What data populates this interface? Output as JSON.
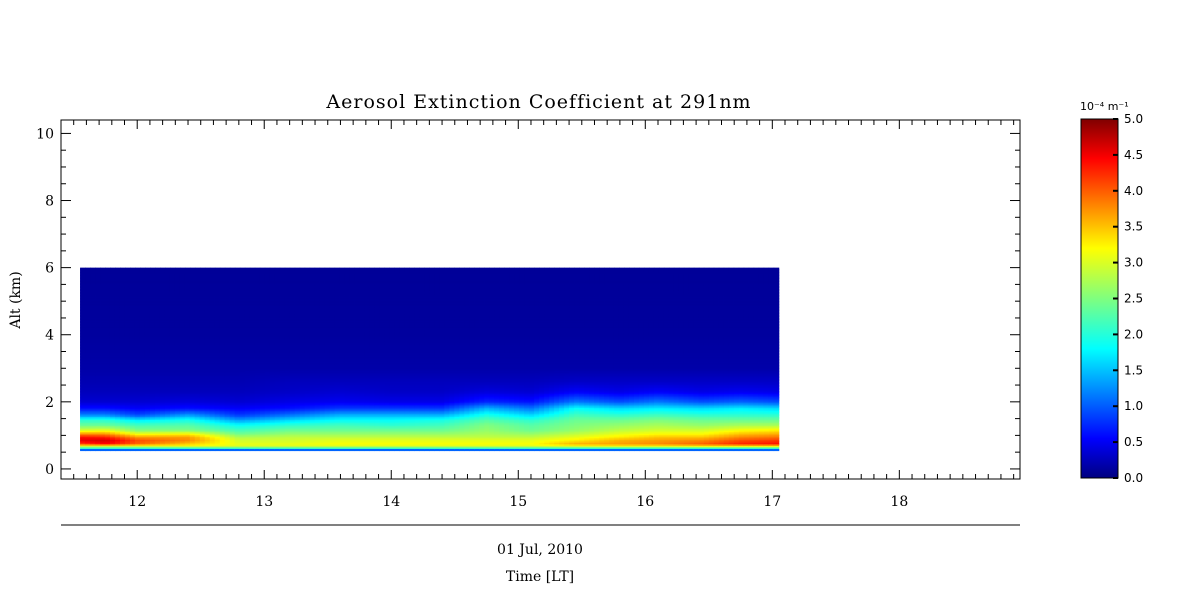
{
  "chart_data": {
    "type": "heatmap",
    "title": "Aerosol Extinction Coefficient at 291nm",
    "ylabel": "Alt (km)",
    "date_label": "01 Jul, 2010",
    "xlabel": "Time [LT]",
    "xlim": [
      11.4,
      18.95
    ],
    "ylim": [
      -0.3,
      10.4
    ],
    "x_ticks": [
      "12",
      "13",
      "14",
      "15",
      "16",
      "17",
      "18"
    ],
    "y_ticks": [
      "0",
      "2",
      "4",
      "6",
      "8",
      "10"
    ],
    "data_extent": {
      "time_start": 11.55,
      "time_end": 17.05,
      "alt_min": 0.55,
      "alt_max": 6.0
    },
    "colorbar": {
      "unit": "10⁻⁴ m⁻¹",
      "min": 0.0,
      "max": 5.0,
      "ticks": [
        "0.0",
        "0.5",
        "1.0",
        "1.5",
        "2.0",
        "2.5",
        "3.0",
        "3.5",
        "4.0",
        "4.5",
        "5.0"
      ],
      "colormap": "jet"
    },
    "profile_altitudes": [
      0.55,
      0.62,
      0.68,
      0.75,
      0.85,
      0.95,
      1.05,
      1.15,
      1.3,
      1.45,
      1.6,
      1.8,
      2.0,
      2.3,
      2.6,
      3.0,
      4.0,
      6.0
    ],
    "profiles": [
      {
        "time": 11.55,
        "values": [
          0.6,
          2.2,
          3.0,
          4.1,
          4.5,
          4.3,
          3.6,
          2.9,
          2.4,
          2.1,
          1.3,
          0.7,
          0.4,
          0.3,
          0.25,
          0.2,
          0.15,
          0.12
        ]
      },
      {
        "time": 11.75,
        "values": [
          0.6,
          2.2,
          3.0,
          4.4,
          4.6,
          4.2,
          3.6,
          3.0,
          2.4,
          2.1,
          1.3,
          0.7,
          0.4,
          0.3,
          0.25,
          0.2,
          0.15,
          0.12
        ]
      },
      {
        "time": 12.0,
        "values": [
          0.6,
          2.2,
          3.0,
          3.9,
          4.0,
          3.6,
          3.0,
          2.5,
          2.2,
          1.8,
          1.0,
          0.6,
          0.4,
          0.3,
          0.25,
          0.2,
          0.15,
          0.12
        ]
      },
      {
        "time": 12.4,
        "values": [
          0.6,
          2.2,
          3.1,
          3.4,
          3.7,
          3.6,
          3.1,
          2.5,
          2.3,
          2.0,
          1.4,
          0.7,
          0.45,
          0.3,
          0.25,
          0.2,
          0.15,
          0.12
        ]
      },
      {
        "time": 12.8,
        "values": [
          0.6,
          2.2,
          3.0,
          3.0,
          2.9,
          2.7,
          2.4,
          2.2,
          1.9,
          1.4,
          0.9,
          0.6,
          0.4,
          0.3,
          0.25,
          0.2,
          0.15,
          0.12
        ]
      },
      {
        "time": 13.2,
        "values": [
          0.6,
          2.2,
          3.0,
          3.0,
          2.9,
          2.8,
          2.6,
          2.4,
          2.1,
          1.7,
          1.2,
          0.7,
          0.5,
          0.35,
          0.3,
          0.2,
          0.15,
          0.12
        ]
      },
      {
        "time": 13.6,
        "values": [
          0.6,
          2.2,
          3.0,
          3.1,
          3.0,
          2.8,
          2.6,
          2.4,
          2.2,
          1.9,
          1.5,
          0.9,
          0.55,
          0.4,
          0.3,
          0.2,
          0.15,
          0.12
        ]
      },
      {
        "time": 14.0,
        "values": [
          0.6,
          2.2,
          3.0,
          3.1,
          3.0,
          2.8,
          2.6,
          2.4,
          2.1,
          1.9,
          1.5,
          0.9,
          0.5,
          0.35,
          0.3,
          0.2,
          0.15,
          0.12
        ]
      },
      {
        "time": 14.4,
        "values": [
          0.6,
          2.2,
          3.0,
          3.1,
          3.0,
          2.8,
          2.6,
          2.4,
          2.2,
          2.0,
          1.5,
          0.9,
          0.5,
          0.35,
          0.3,
          0.2,
          0.15,
          0.12
        ]
      },
      {
        "time": 14.75,
        "values": [
          0.6,
          2.2,
          3.0,
          3.1,
          3.0,
          2.8,
          2.7,
          2.6,
          2.5,
          2.3,
          2.0,
          1.5,
          0.8,
          0.45,
          0.3,
          0.2,
          0.15,
          0.12
        ]
      },
      {
        "time": 15.1,
        "values": [
          0.6,
          2.2,
          3.0,
          3.1,
          3.0,
          2.8,
          2.6,
          2.4,
          2.3,
          2.1,
          1.7,
          1.2,
          0.7,
          0.4,
          0.3,
          0.2,
          0.15,
          0.12
        ]
      },
      {
        "time": 15.45,
        "values": [
          0.6,
          2.2,
          3.1,
          3.5,
          3.2,
          3.0,
          2.8,
          2.6,
          2.5,
          2.4,
          2.2,
          1.9,
          1.2,
          0.6,
          0.35,
          0.2,
          0.15,
          0.12
        ]
      },
      {
        "time": 15.8,
        "values": [
          0.6,
          2.2,
          3.2,
          3.6,
          3.5,
          3.2,
          3.0,
          2.8,
          2.6,
          2.4,
          2.1,
          1.7,
          1.0,
          0.5,
          0.35,
          0.2,
          0.15,
          0.12
        ]
      },
      {
        "time": 16.1,
        "values": [
          0.6,
          2.2,
          3.2,
          3.7,
          3.6,
          3.4,
          3.1,
          2.9,
          2.7,
          2.5,
          2.2,
          1.8,
          1.2,
          0.6,
          0.35,
          0.2,
          0.15,
          0.12
        ]
      },
      {
        "time": 16.45,
        "values": [
          0.6,
          2.2,
          3.3,
          3.9,
          3.7,
          3.4,
          3.1,
          2.9,
          2.6,
          2.4,
          2.1,
          1.7,
          1.0,
          0.5,
          0.35,
          0.2,
          0.15,
          0.12
        ]
      },
      {
        "time": 16.75,
        "values": [
          0.6,
          2.2,
          3.3,
          4.2,
          4.0,
          3.7,
          3.4,
          3.1,
          2.7,
          2.4,
          2.1,
          1.8,
          1.1,
          0.55,
          0.35,
          0.2,
          0.15,
          0.12
        ]
      },
      {
        "time": 17.05,
        "values": [
          0.6,
          2.2,
          3.3,
          4.3,
          4.1,
          3.8,
          3.5,
          3.2,
          2.7,
          2.4,
          2.1,
          1.7,
          1.0,
          0.5,
          0.35,
          0.2,
          0.15,
          0.12
        ]
      }
    ]
  }
}
